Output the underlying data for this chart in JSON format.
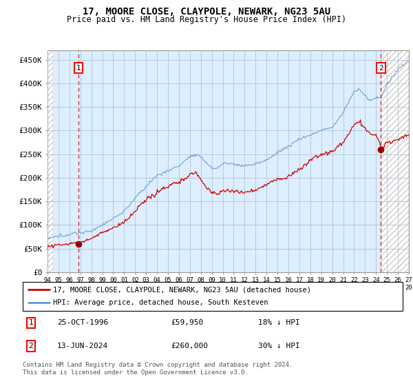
{
  "title": "17, MOORE CLOSE, CLAYPOLE, NEWARK, NG23 5AU",
  "subtitle": "Price paid vs. HM Land Registry's House Price Index (HPI)",
  "ylabel_vals": [
    0,
    50000,
    100000,
    150000,
    200000,
    250000,
    300000,
    350000,
    400000,
    450000
  ],
  "ylabel_labels": [
    "£0",
    "£50K",
    "£100K",
    "£150K",
    "£200K",
    "£250K",
    "£300K",
    "£350K",
    "£400K",
    "£450K"
  ],
  "x_tick_years": [
    1994,
    1995,
    1996,
    1997,
    1998,
    1999,
    2000,
    2001,
    2002,
    2003,
    2004,
    2005,
    2006,
    2007,
    2008,
    2009,
    2010,
    2011,
    2012,
    2013,
    2014,
    2015,
    2016,
    2017,
    2018,
    2019,
    2020,
    2021,
    2022,
    2023,
    2024,
    2025,
    2026,
    2027
  ],
  "hpi_line_color": "#6699cc",
  "hpi_fill_color": "#ddeeff",
  "price_line_color": "#cc0000",
  "price_dot_color": "#990000",
  "hatch_color": "#cccccc",
  "grid_color": "#aabbcc",
  "marker1_year": 1996.82,
  "marker1_price": 59950,
  "marker2_year": 2024.45,
  "marker2_price": 260000,
  "marker1_date": "25-OCT-1996",
  "marker1_amount": "£59,950",
  "marker1_pct": "18% ↓ HPI",
  "marker2_date": "13-JUN-2024",
  "marker2_amount": "£260,000",
  "marker2_pct": "30% ↓ HPI",
  "legend1": "17, MOORE CLOSE, CLAYPOLE, NEWARK, NG23 5AU (detached house)",
  "legend2": "HPI: Average price, detached house, South Kesteven",
  "footer": "Contains HM Land Registry data © Crown copyright and database right 2024.\nThis data is licensed under the Open Government Licence v3.0.",
  "ylim": [
    0,
    470000
  ],
  "xlim": [
    1994,
    2027
  ]
}
